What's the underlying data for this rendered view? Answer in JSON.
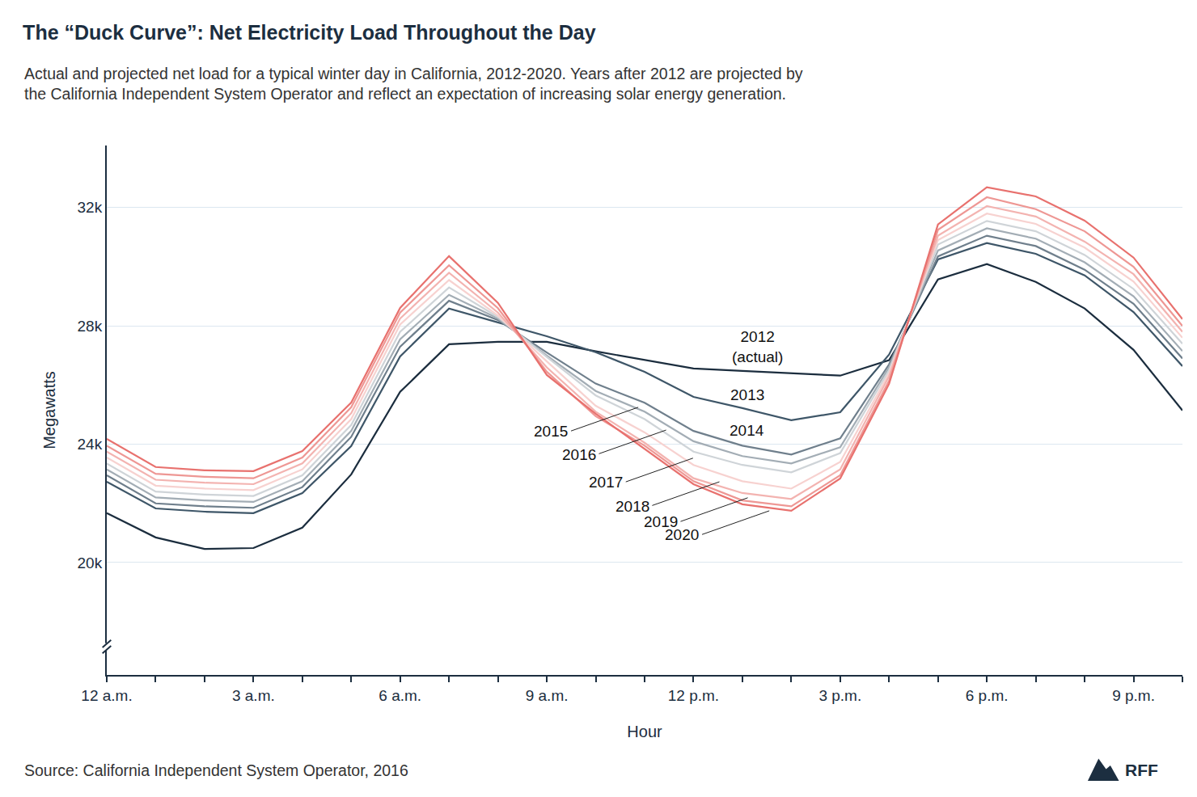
{
  "chart_data": {
    "type": "line",
    "title": "The “Duck Curve”: Net Electricity Load Throughout the Day",
    "subtitle": "Actual and projected net load for a typical winter day in California, 2012-2020. Years after 2012 are projected by\nthe California Independent System Operator and reflect an expectation of increasing solar energy generation.",
    "x_label": "Hour",
    "y_label": "Megawatts",
    "source": "Source: California Independent System Operator, 2016",
    "logo": "RFF",
    "categories": [
      "12 a.m.",
      null,
      null,
      "3 a.m.",
      null,
      null,
      "6 a.m.",
      null,
      null,
      "9 a.m.",
      null,
      null,
      "12 p.m.",
      null,
      null,
      "3 p.m.",
      null,
      null,
      "6 p.m.",
      null,
      null,
      "9 p.m.",
      null
    ],
    "series": [
      {
        "name": "2012",
        "color": "#1b2d3e",
        "values": [
          21670,
          20850,
          20460,
          20490,
          21180,
          22980,
          25770,
          27380,
          27460,
          27460,
          27140,
          26840,
          26560,
          26480,
          26400,
          26320,
          26840,
          29570,
          30090,
          29490,
          28590,
          27190,
          25140
        ]
      },
      {
        "name": "2013",
        "color": "#3e5668",
        "values": [
          22730,
          21830,
          21720,
          21670,
          22350,
          23940,
          26970,
          28590,
          28120,
          27650,
          27110,
          26450,
          25600,
          25220,
          24810,
          25080,
          27030,
          30250,
          30800,
          30440,
          29710,
          28470,
          26640
        ]
      },
      {
        "name": "2014",
        "color": "#6f7f8c",
        "values": [
          22950,
          22000,
          21900,
          21850,
          22550,
          24250,
          27300,
          28850,
          28200,
          27100,
          26050,
          25400,
          24450,
          23950,
          23650,
          24200,
          26700,
          30350,
          31050,
          30700,
          29900,
          28750,
          26900
        ]
      },
      {
        "name": "2015",
        "color": "#a3adb5",
        "values": [
          23150,
          22200,
          22100,
          22050,
          22750,
          24450,
          27550,
          29050,
          28250,
          27000,
          25800,
          25100,
          24100,
          23600,
          23350,
          23900,
          26600,
          30550,
          31300,
          30950,
          30150,
          29000,
          27150
        ]
      },
      {
        "name": "2016",
        "color": "#cfd4d8",
        "values": [
          23350,
          22400,
          22300,
          22250,
          22950,
          24650,
          27800,
          29300,
          28300,
          26950,
          25650,
          24850,
          23750,
          23300,
          23050,
          23700,
          26500,
          30750,
          31550,
          31200,
          30400,
          29250,
          27400
        ]
      },
      {
        "name": "2017",
        "color": "#f7d2d0",
        "values": [
          23550,
          22600,
          22500,
          22450,
          23150,
          24850,
          28050,
          29550,
          28350,
          26800,
          25300,
          24400,
          23300,
          22750,
          22500,
          23400,
          26400,
          30900,
          31800,
          31450,
          30650,
          29500,
          27600
        ]
      },
      {
        "name": "2018",
        "color": "#f3b3b0",
        "values": [
          23750,
          22800,
          22700,
          22650,
          23350,
          25050,
          28250,
          29800,
          28450,
          26600,
          25100,
          24050,
          22850,
          22350,
          22150,
          23150,
          26300,
          31050,
          32050,
          31700,
          30850,
          29750,
          27800
        ]
      },
      {
        "name": "2019",
        "color": "#ee9794",
        "values": [
          23950,
          23000,
          22900,
          22850,
          23550,
          25250,
          28450,
          30050,
          28600,
          26450,
          24950,
          23950,
          22750,
          22100,
          21900,
          22950,
          26150,
          31250,
          32350,
          31950,
          31200,
          30000,
          28000
        ]
      },
      {
        "name": "2020",
        "color": "#e8716e",
        "values": [
          24180,
          23230,
          23120,
          23090,
          23770,
          25410,
          28610,
          30360,
          28780,
          26340,
          25030,
          23850,
          22650,
          21970,
          21750,
          22840,
          26040,
          31430,
          32690,
          32380,
          31560,
          30310,
          28230
        ]
      }
    ],
    "ylim": [
      16200,
      34100
    ],
    "yticks": [
      {
        "value": 20000,
        "label": "20k"
      },
      {
        "value": 24000,
        "label": "24k"
      },
      {
        "value": 28000,
        "label": "28k"
      },
      {
        "value": 32000,
        "label": "32k"
      }
    ],
    "grid": true,
    "annotations": [
      {
        "text": "2012\n(actual)",
        "x": 13.3,
        "y": 27300
      },
      {
        "text": "2013",
        "x": 13.1,
        "y": 25660
      },
      {
        "text": "2014",
        "x": 13.1,
        "y": 24480
      }
    ],
    "callouts": [
      {
        "text": "2015",
        "x": 10.87,
        "y": 25250
      },
      {
        "text": "2016",
        "x": 11.44,
        "y": 24480
      },
      {
        "text": "2017",
        "x": 11.99,
        "y": 23530
      },
      {
        "text": "2018",
        "x": 12.53,
        "y": 22730
      },
      {
        "text": "2019",
        "x": 13.11,
        "y": 22190
      },
      {
        "text": "2020",
        "x": 13.55,
        "y": 21750
      }
    ]
  }
}
